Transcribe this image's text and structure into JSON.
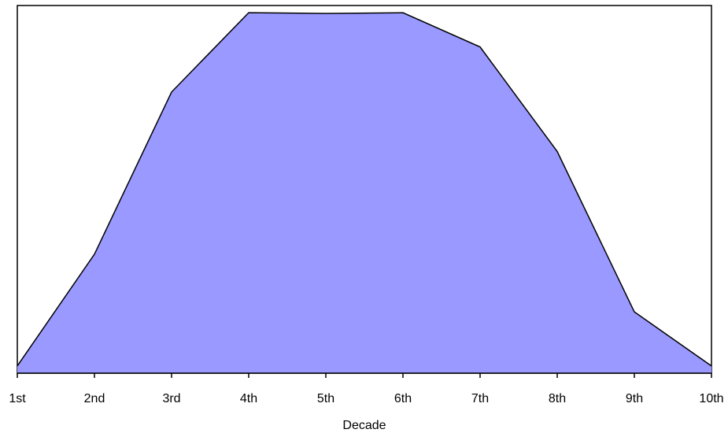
{
  "chart_data": {
    "type": "area",
    "categories": [
      "1st",
      "2nd",
      "3rd",
      "4th",
      "5th",
      "6th",
      "7th",
      "8th",
      "9th",
      "10th"
    ],
    "series": [
      {
        "values": [
          2,
          33,
          78,
          100,
          99.8,
          100,
          90.5,
          61.5,
          17,
          2
        ]
      }
    ],
    "xlabel": "Decade",
    "ylabel": "",
    "ylim": [
      0,
      102
    ],
    "grid": false,
    "legend": "none",
    "colors": {
      "fill": "#9999ff",
      "stroke": "#000000",
      "frame": "#000000"
    }
  }
}
